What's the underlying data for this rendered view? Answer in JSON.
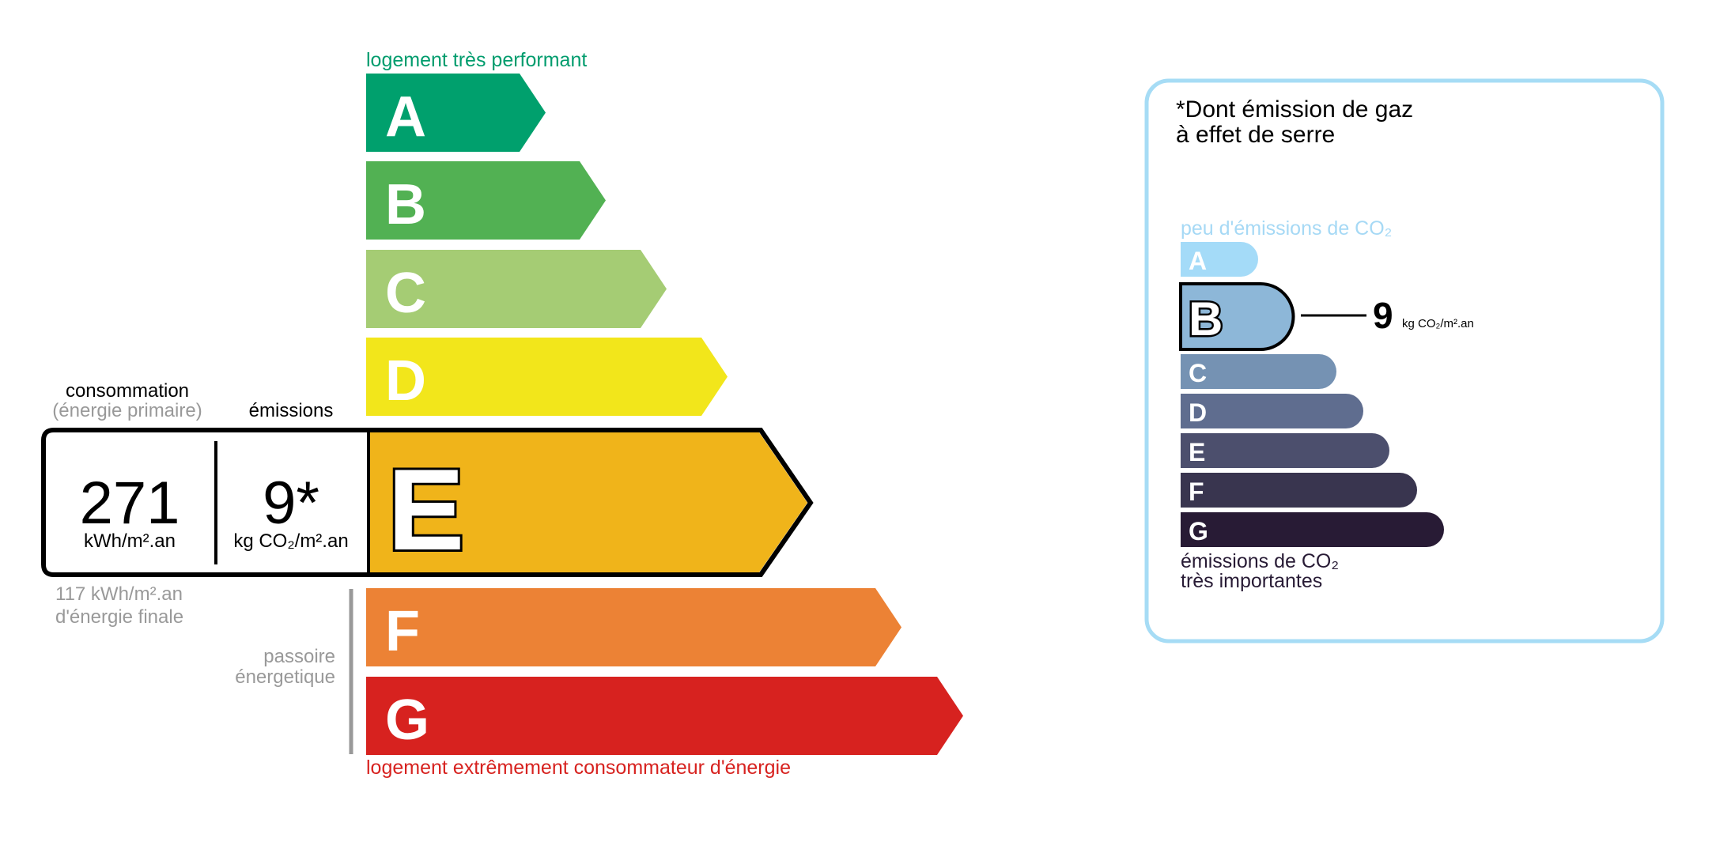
{
  "energy": {
    "top_label": "logement très performant",
    "bottom_label": "logement extrêmement consommateur d'énergie",
    "top_label_color": "#009c6d",
    "bottom_label_color": "#d7221f",
    "current_class": "E",
    "classes": [
      {
        "letter": "A",
        "color": "#00a06d"
      },
      {
        "letter": "B",
        "color": "#52b153"
      },
      {
        "letter": "C",
        "color": "#a5cc74"
      },
      {
        "letter": "D",
        "color": "#f2e61b"
      },
      {
        "letter": "E",
        "color": "#f0b41a"
      },
      {
        "letter": "F",
        "color": "#ec8235"
      },
      {
        "letter": "G",
        "color": "#d7221f"
      }
    ],
    "consumption_label": "consommation",
    "consumption_sublabel": "(énergie primaire)",
    "emissions_label": "émissions",
    "consumption_value": "271",
    "consumption_unit": "kWh/m².an",
    "emissions_value": "9*",
    "emissions_unit": "kg CO₂/m².an",
    "final_energy_line1": "117 kWh/m².an",
    "final_energy_line2": "d'énergie finale",
    "passoire_line1": "passoire",
    "passoire_line2": "énergetique"
  },
  "ges": {
    "title_line1": "*Dont émission de gaz",
    "title_line2": "à effet de serre",
    "top_label": "peu d'émissions de CO₂",
    "bottom_label_line1": "émissions de CO₂",
    "bottom_label_line2": "très importantes",
    "border_color": "#a6dcf5",
    "current_class": "B",
    "value": "9",
    "unit": "kg CO₂/m².an",
    "classes": [
      {
        "letter": "A",
        "color": "#a4dbf8"
      },
      {
        "letter": "B",
        "color": "#8db7d8"
      },
      {
        "letter": "C",
        "color": "#7592b3"
      },
      {
        "letter": "D",
        "color": "#5f6d8f"
      },
      {
        "letter": "E",
        "color": "#4c4f6d"
      },
      {
        "letter": "F",
        "color": "#39354f"
      },
      {
        "letter": "G",
        "color": "#281b35"
      }
    ]
  }
}
